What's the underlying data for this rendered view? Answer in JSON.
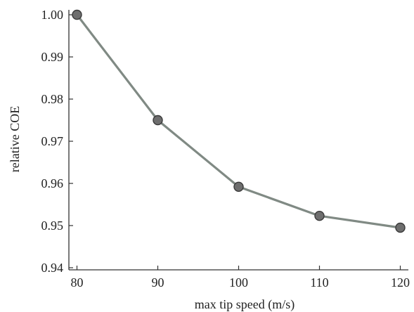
{
  "chart_data": {
    "type": "line",
    "xlabel": "max tip speed (m/s)",
    "ylabel": "relative COE",
    "x": [
      80,
      90,
      100,
      110,
      120
    ],
    "xlim": [
      79,
      121
    ],
    "ylim": [
      0.94,
      1.0
    ],
    "xticks": [
      "80",
      "90",
      "100",
      "110",
      "120"
    ],
    "yticks": [
      "0.94",
      "0.95",
      "0.96",
      "0.97",
      "0.98",
      "0.99",
      "1.00"
    ],
    "series": [
      {
        "values": [
          1.0,
          0.975,
          0.9592,
          0.9523,
          0.9495
        ]
      }
    ],
    "grid": false,
    "colors": {
      "line": "#808a84",
      "marker_fill": "#6e6e6e",
      "marker_edge": "#3a3a3a",
      "axis": "#333333"
    }
  }
}
